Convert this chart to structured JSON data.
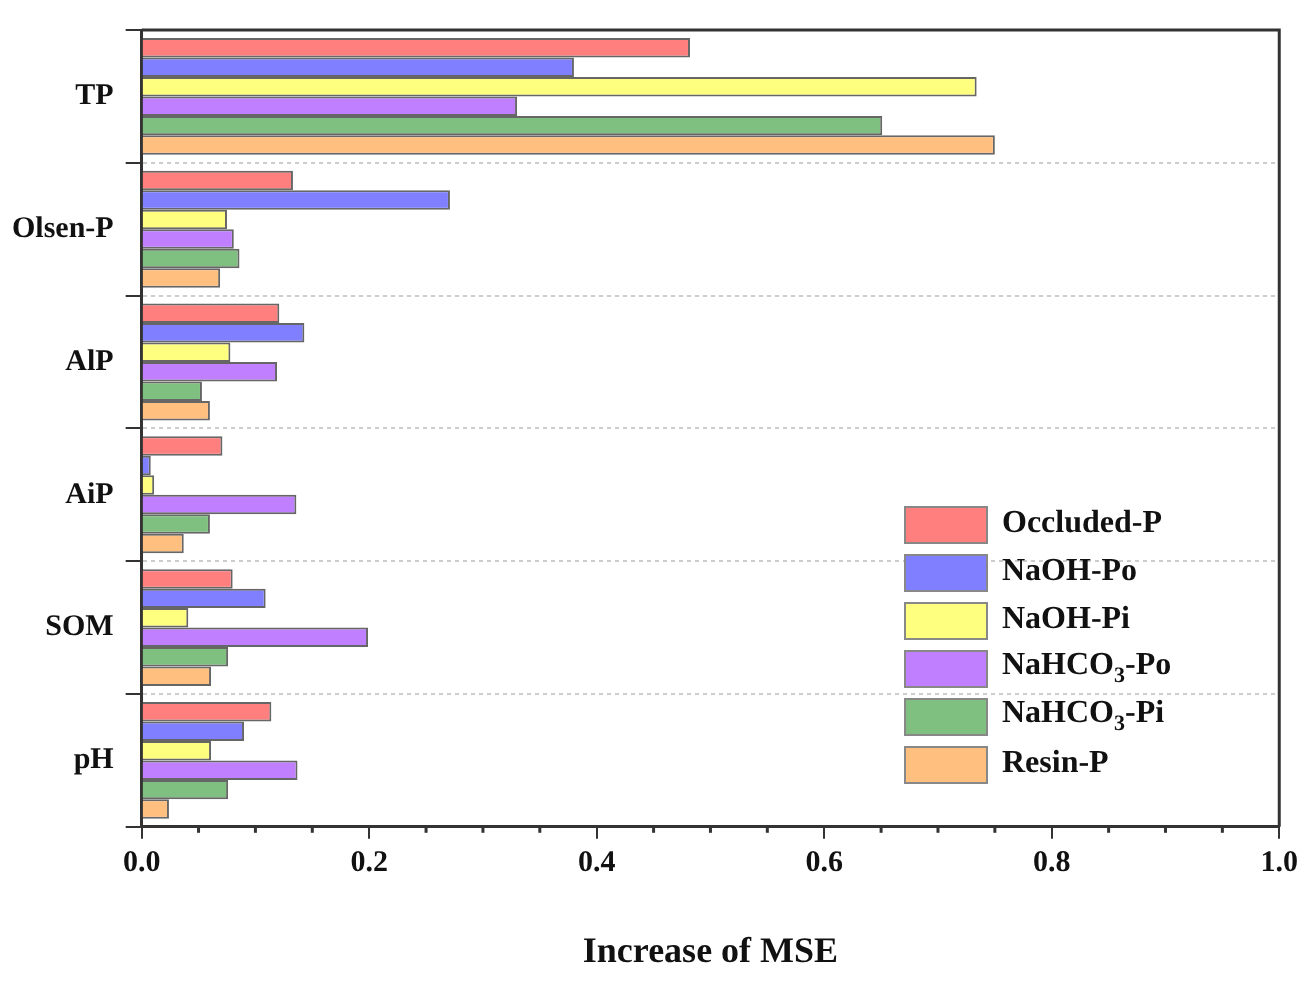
{
  "chart_data": {
    "type": "bar",
    "orientation": "horizontal",
    "xlabel": "Increase of MSE",
    "categories": [
      "TP",
      "Olsen-P",
      "AlP",
      "AiP",
      "SOM",
      "pH"
    ],
    "series": [
      {
        "name": "Occluded-P",
        "color": "#ff7f7f",
        "values": [
          0.482,
          0.133,
          0.121,
          0.071,
          0.08,
          0.114
        ]
      },
      {
        "name": "NaOH-Po",
        "color": "#7f7fff",
        "values": [
          0.38,
          0.271,
          0.143,
          0.008,
          0.109,
          0.09
        ]
      },
      {
        "name": "NaOH-Pi",
        "color": "#ffff7f",
        "values": [
          0.734,
          0.075,
          0.078,
          0.011,
          0.041,
          0.061
        ]
      },
      {
        "name": "NaHCO$_{3}$-Po",
        "color": "#bf7fff",
        "values": [
          0.33,
          0.081,
          0.119,
          0.136,
          0.199,
          0.137
        ]
      },
      {
        "name": "NaHCO$_{3}$-Pi",
        "color": "#7fbf7f",
        "values": [
          0.651,
          0.086,
          0.053,
          0.06,
          0.076,
          0.076
        ]
      },
      {
        "name": "Resin-P",
        "color": "#ffbf7f",
        "values": [
          0.75,
          0.069,
          0.06,
          0.037,
          0.061,
          0.024
        ]
      }
    ],
    "xlim": [
      0,
      1
    ],
    "xticks": [
      {
        "value": 0,
        "label": "0.0"
      },
      {
        "value": 0.2,
        "label": "0.2"
      },
      {
        "value": 0.4,
        "label": "0.4"
      },
      {
        "value": 0.6,
        "label": "0.6"
      },
      {
        "value": 0.8,
        "label": "0.8"
      },
      {
        "value": 1,
        "label": "1.0"
      }
    ],
    "grid": "y",
    "legend": "bottom right"
  }
}
